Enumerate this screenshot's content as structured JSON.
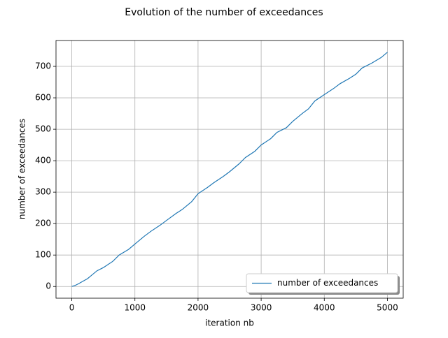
{
  "chart_data": {
    "type": "line",
    "title": "Evolution of the number of exceedances",
    "x_label": "iteration nb",
    "y_label": "number of exceedances",
    "x": [
      0,
      50,
      100,
      250,
      400,
      500,
      650,
      750,
      900,
      1000,
      1150,
      1250,
      1400,
      1500,
      1650,
      1750,
      1900,
      2000,
      2150,
      2250,
      2400,
      2500,
      2650,
      2700,
      2750,
      2900,
      3000,
      3150,
      3250,
      3400,
      3500,
      3650,
      3750,
      3850,
      4000,
      4150,
      4250,
      4400,
      4500,
      4600,
      4750,
      4900,
      5000
    ],
    "series": [
      {
        "name": "number of exceedances",
        "color": "#1f77b4",
        "values": [
          0,
          3,
          8,
          25,
          50,
          60,
          80,
          100,
          118,
          135,
          160,
          175,
          195,
          210,
          232,
          245,
          270,
          295,
          315,
          330,
          350,
          365,
          390,
          400,
          410,
          430,
          450,
          470,
          490,
          505,
          525,
          550,
          565,
          590,
          610,
          630,
          645,
          662,
          675,
          695,
          710,
          728,
          745
        ]
      }
    ],
    "xlim": [
      -250,
      5250
    ],
    "ylim": [
      -37.25,
      782.25
    ],
    "xticks": [
      0,
      1000,
      2000,
      3000,
      4000,
      5000
    ],
    "yticks": [
      0,
      100,
      200,
      300,
      400,
      500,
      600,
      700
    ],
    "grid": true,
    "legend": "lower right"
  }
}
